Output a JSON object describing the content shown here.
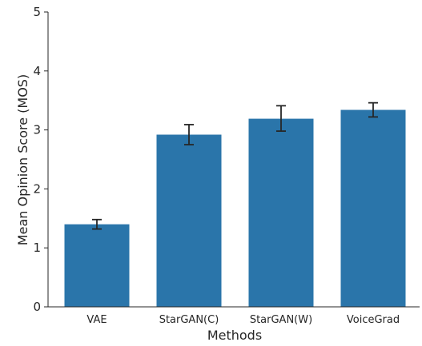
{
  "chart_data": {
    "type": "bar",
    "categories": [
      "VAE",
      "StarGAN(C)",
      "StarGAN(W)",
      "VoiceGrad"
    ],
    "values": [
      1.4,
      2.92,
      3.19,
      3.34
    ],
    "error_bars": [
      {
        "low": 1.32,
        "high": 1.48
      },
      {
        "low": 2.75,
        "high": 3.09
      },
      {
        "low": 2.98,
        "high": 3.41
      },
      {
        "low": 3.22,
        "high": 3.46
      }
    ],
    "title": "",
    "xlabel": "Methods",
    "ylabel": "Mean Opinion Score (MOS)",
    "ylim": [
      0,
      5
    ],
    "yticks": [
      0,
      1,
      2,
      3,
      4,
      5
    ],
    "grid": false,
    "bar_color": "#2a75aa",
    "error_color": "#262626",
    "axis_color": "#262626"
  }
}
